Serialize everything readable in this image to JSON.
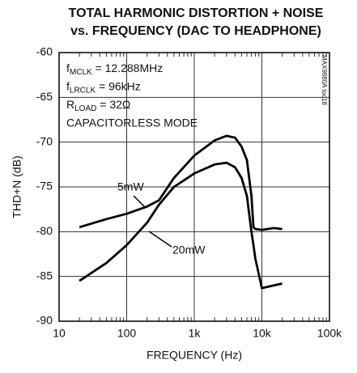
{
  "chart_data": {
    "type": "line",
    "title": [
      "TOTAL HARMONIC DISTORTION + NOISE",
      "vs. FREQUENCY (DAC TO HEADPHONE)"
    ],
    "xlabel": "FREQUENCY (Hz)",
    "ylabel": "THD+N (dB)",
    "xscale": "log",
    "grid": true,
    "xlim": [
      10,
      100000
    ],
    "xticks": [
      10,
      100,
      {
        "value": 1000,
        "label": "1k"
      },
      {
        "value": 10000,
        "label": "10k"
      },
      {
        "value": 100000,
        "label": "100k"
      }
    ],
    "ylim": [
      -90,
      -60
    ],
    "yticks": [
      -90,
      -85,
      -80,
      -75,
      -70,
      -65,
      -60
    ],
    "annotations": [
      {
        "text": "f",
        "sub": "MCLK",
        "rest": " = 12.288MHz"
      },
      {
        "text": "f",
        "sub": "LRCLK",
        "rest": " = 96kHz"
      },
      {
        "text": "R",
        "sub": "LOAD",
        "rest": " = 32Ω"
      },
      {
        "text": "CAPACITORLESS MODE"
      }
    ],
    "side_note": "MAX9880A toc18",
    "x": [
      20,
      50,
      100,
      200,
      300,
      500,
      1000,
      2000,
      3000,
      4000,
      5000,
      6000,
      7000,
      7500,
      8000,
      10000,
      15000,
      20000
    ],
    "series": [
      {
        "name": "5mW",
        "color": "#000000",
        "values": [
          -79.5,
          -78.6,
          -78,
          -77.2,
          -76.5,
          -74,
          -71.5,
          -69.8,
          -69.3,
          -69.5,
          -70.5,
          -72,
          -76,
          -79.5,
          -79.7,
          -79.8,
          -79.6,
          -79.7
        ]
      },
      {
        "name": "20mW",
        "color": "#000000",
        "values": [
          -85.5,
          -83.5,
          -81.5,
          -79,
          -77,
          -75,
          -73.5,
          -72.5,
          -72.3,
          -72.8,
          -74,
          -76,
          -80,
          -81.5,
          -83,
          -86.3,
          -86,
          -85.8
        ]
      }
    ]
  }
}
